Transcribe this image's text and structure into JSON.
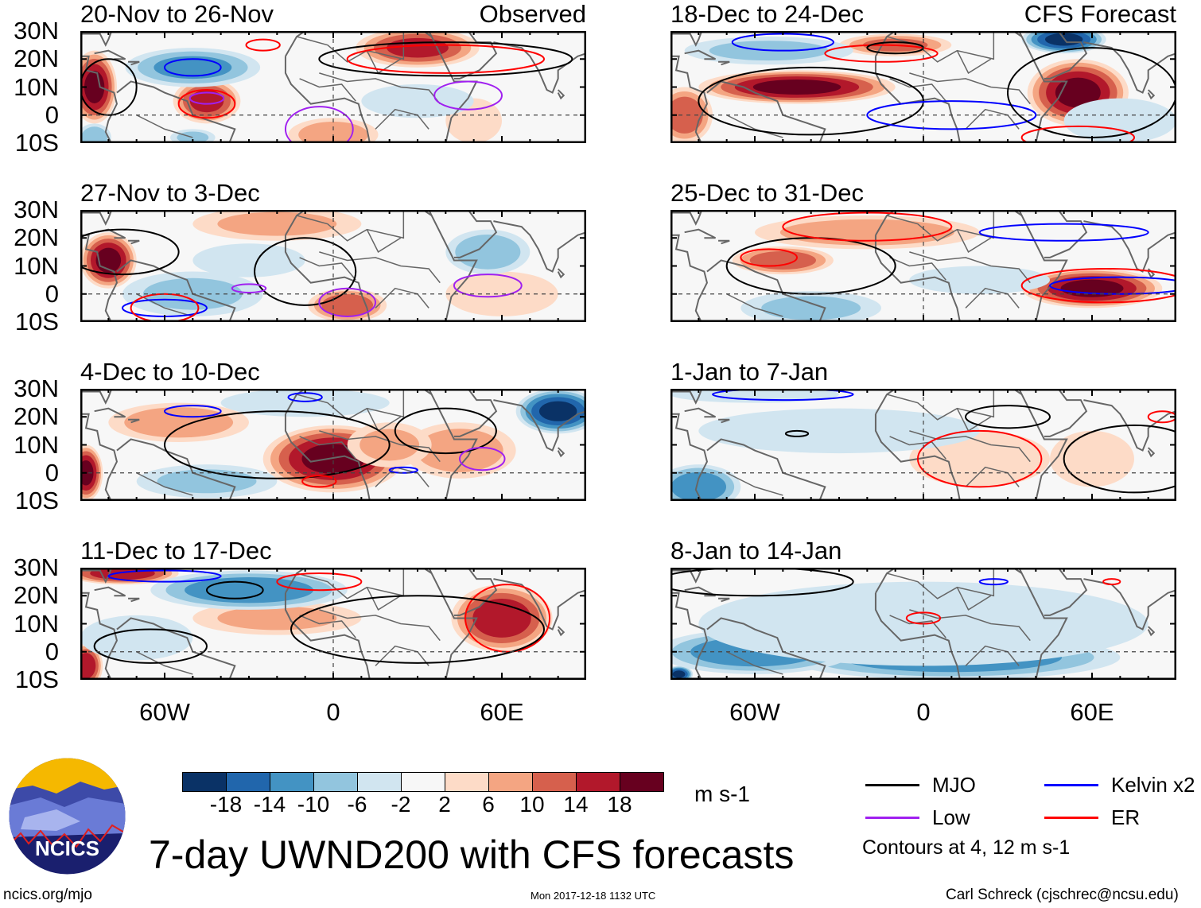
{
  "title": "7-day UWND200 with CFS forecasts",
  "observed_label": "Observed",
  "forecast_label": "CFS Forecast",
  "lat_labels": [
    "30N",
    "20N",
    "10N",
    "0",
    "10S"
  ],
  "lon_labels": [
    "60W",
    "0",
    "60E"
  ],
  "colorbar": {
    "colors": [
      "#0a3266",
      "#2166ac",
      "#4393c3",
      "#92c5de",
      "#d1e5f0",
      "#f7f7f7",
      "#fddbc7",
      "#f4a582",
      "#d6604d",
      "#b2182b",
      "#67001f"
    ],
    "labels": [
      "-18",
      "-14",
      "-10",
      "-6",
      "-2",
      "2",
      "6",
      "10",
      "14",
      "18"
    ],
    "unit": "m s-1"
  },
  "legend": {
    "items": [
      {
        "label": "MJO",
        "color": "#000000"
      },
      {
        "label": "Kelvin x2",
        "color": "#0000ff"
      },
      {
        "label": "Low",
        "color": "#a020f0"
      },
      {
        "label": "ER",
        "color": "#ff0000"
      }
    ],
    "note": "Contours at 4, 12 m s-1"
  },
  "logo_text": "NCICS",
  "footer": {
    "left": "ncics.org/mjo",
    "center": "Mon 2017-12-18 1132 UTC",
    "right": "Carl Schreck (cjschrec@ncsu.edu)"
  },
  "panels": [
    {
      "title": "20-Nov to 26-Nov",
      "col": 0,
      "row": 0,
      "shading": [
        [
          -85,
          10,
          20,
          8,
          13
        ],
        [
          -45,
          5,
          16,
          12,
          8
        ],
        [
          0,
          -7,
          10,
          16,
          6
        ],
        [
          30,
          24,
          16,
          22,
          7
        ],
        [
          50,
          -2,
          6,
          10,
          8
        ],
        [
          -50,
          17,
          -12,
          24,
          7
        ],
        [
          -85,
          -8,
          -10,
          6,
          5
        ],
        [
          -50,
          -8,
          -8,
          8,
          3
        ],
        [
          30,
          5,
          -4,
          20,
          6
        ]
      ],
      "contours": [
        [
          "blue",
          -50,
          17,
          10,
          3
        ],
        [
          "purple",
          -45,
          6,
          6,
          2
        ],
        [
          "purple",
          -5,
          -5,
          12,
          8
        ],
        [
          "purple",
          48,
          7,
          12,
          5
        ],
        [
          "red",
          -45,
          4,
          10,
          5
        ],
        [
          "black",
          40,
          20,
          45,
          6
        ],
        [
          "red",
          40,
          20,
          35,
          5
        ],
        [
          "black",
          -80,
          10,
          10,
          10
        ],
        [
          "red",
          -25,
          25,
          6,
          2
        ]
      ]
    },
    {
      "title": "27-Nov to 3-Dec",
      "col": 0,
      "row": 1,
      "shading": [
        [
          -80,
          12,
          20,
          10,
          10
        ],
        [
          5,
          -4,
          14,
          14,
          6
        ],
        [
          -20,
          25,
          8,
          30,
          6
        ],
        [
          60,
          0,
          6,
          20,
          8
        ],
        [
          55,
          15,
          -10,
          15,
          8
        ],
        [
          -50,
          0,
          -8,
          25,
          8
        ],
        [
          -30,
          12,
          -4,
          20,
          6
        ]
      ],
      "contours": [
        [
          "black",
          -10,
          8,
          18,
          12
        ],
        [
          "purple",
          55,
          3,
          12,
          4
        ],
        [
          "blue",
          -60,
          -5,
          15,
          3
        ],
        [
          "red",
          -60,
          -5,
          12,
          5
        ],
        [
          "black",
          -75,
          15,
          20,
          8
        ],
        [
          "purple",
          -30,
          2,
          6,
          1.5
        ],
        [
          "purple",
          5,
          -3,
          10,
          5
        ]
      ]
    },
    {
      "title": "4-Dec to 10-Dec",
      "col": 0,
      "row": 2,
      "shading": [
        [
          0,
          5,
          20,
          25,
          12
        ],
        [
          -88,
          0,
          20,
          6,
          10
        ],
        [
          -55,
          18,
          10,
          25,
          7
        ],
        [
          45,
          8,
          10,
          20,
          10
        ],
        [
          20,
          10,
          8,
          15,
          8
        ],
        [
          80,
          22,
          -20,
          15,
          8
        ],
        [
          -45,
          -3,
          -8,
          25,
          6
        ],
        [
          -10,
          25,
          -6,
          30,
          5
        ]
      ],
      "contours": [
        [
          "black",
          -20,
          10,
          40,
          12
        ],
        [
          "black",
          40,
          15,
          18,
          8
        ],
        [
          "purple",
          53,
          5,
          8,
          4
        ],
        [
          "blue",
          -50,
          22,
          10,
          2
        ],
        [
          "red",
          -5,
          -3,
          6,
          2
        ],
        [
          "blue",
          -10,
          27,
          6,
          1.5
        ],
        [
          "blue",
          25,
          1,
          5,
          1
        ]
      ]
    },
    {
      "title": "11-Dec to 17-Dec",
      "col": 0,
      "row": 3,
      "shading": [
        [
          60,
          12,
          18,
          18,
          12
        ],
        [
          -88,
          -5,
          18,
          6,
          8
        ],
        [
          -75,
          28,
          18,
          20,
          4
        ],
        [
          -20,
          12,
          8,
          30,
          6
        ],
        [
          -30,
          22,
          -14,
          35,
          7
        ],
        [
          -70,
          5,
          -6,
          20,
          8
        ]
      ],
      "contours": [
        [
          "black",
          -35,
          22,
          10,
          3
        ],
        [
          "red",
          62,
          12,
          15,
          12
        ],
        [
          "black",
          30,
          8,
          45,
          12
        ],
        [
          "blue",
          -60,
          27,
          20,
          2
        ],
        [
          "red",
          -5,
          25,
          15,
          3
        ],
        [
          "black",
          -65,
          2,
          20,
          6
        ]
      ]
    },
    {
      "title": "18-Dec to 24-Dec",
      "col": 1,
      "row": 0,
      "shading": [
        [
          -45,
          10,
          20,
          35,
          6
        ],
        [
          55,
          8,
          20,
          18,
          12
        ],
        [
          -10,
          25,
          12,
          20,
          4
        ],
        [
          -85,
          0,
          14,
          10,
          10
        ],
        [
          50,
          27,
          -20,
          15,
          5
        ],
        [
          -55,
          23,
          -8,
          30,
          5
        ],
        [
          70,
          -2,
          -6,
          20,
          8
        ]
      ],
      "contours": [
        [
          "black",
          -40,
          5,
          40,
          12
        ],
        [
          "blue",
          10,
          0,
          30,
          5
        ],
        [
          "red",
          -15,
          22,
          20,
          3
        ],
        [
          "black",
          -10,
          24,
          10,
          2
        ],
        [
          "blue",
          -50,
          26,
          18,
          3
        ],
        [
          "black",
          60,
          8,
          30,
          16
        ],
        [
          "red",
          55,
          -8,
          20,
          4
        ]
      ]
    },
    {
      "title": "25-Dec to 31-Dec",
      "col": 1,
      "row": 1,
      "shading": [
        [
          60,
          2,
          20,
          25,
          7
        ],
        [
          -50,
          12,
          14,
          18,
          5
        ],
        [
          -20,
          22,
          10,
          40,
          6
        ],
        [
          -40,
          -5,
          -8,
          25,
          6
        ],
        [
          20,
          5,
          -6,
          25,
          5
        ]
      ],
      "contours": [
        [
          "black",
          -40,
          10,
          30,
          10
        ],
        [
          "red",
          -20,
          24,
          30,
          5
        ],
        [
          "blue",
          50,
          22,
          30,
          3
        ],
        [
          "blue",
          70,
          3,
          25,
          3
        ],
        [
          "red",
          65,
          3,
          30,
          6
        ],
        [
          "red",
          -55,
          13,
          10,
          3
        ]
      ]
    },
    {
      "title": "1-Jan to 7-Jan",
      "col": 1,
      "row": 2,
      "shading": [
        [
          60,
          5,
          6,
          15,
          10
        ],
        [
          20,
          5,
          6,
          25,
          10
        ],
        [
          -80,
          -5,
          -14,
          15,
          8
        ],
        [
          -30,
          15,
          -6,
          50,
          8
        ],
        [
          -60,
          28,
          -6,
          30,
          3
        ]
      ],
      "contours": [
        [
          "black",
          30,
          20,
          15,
          4
        ],
        [
          "red",
          20,
          5,
          22,
          10
        ],
        [
          "black",
          75,
          5,
          25,
          12
        ],
        [
          "blue",
          -50,
          28,
          25,
          2
        ],
        [
          "red",
          85,
          20,
          5,
          2
        ],
        [
          "black",
          -45,
          14,
          4,
          1
        ]
      ]
    },
    {
      "title": "8-Jan to 14-Jan",
      "col": 1,
      "row": 3,
      "shading": [
        [
          10,
          -2,
          -14,
          60,
          8
        ],
        [
          -60,
          0,
          -14,
          35,
          8
        ],
        [
          -87,
          -8,
          -20,
          5,
          3
        ],
        [
          0,
          10,
          -6,
          80,
          15
        ]
      ],
      "contours": [
        [
          "black",
          -60,
          25,
          35,
          5
        ],
        [
          "red",
          0,
          12,
          6,
          2
        ],
        [
          "blue",
          25,
          25,
          5,
          1
        ],
        [
          "red",
          67,
          25,
          3,
          1
        ]
      ]
    }
  ]
}
